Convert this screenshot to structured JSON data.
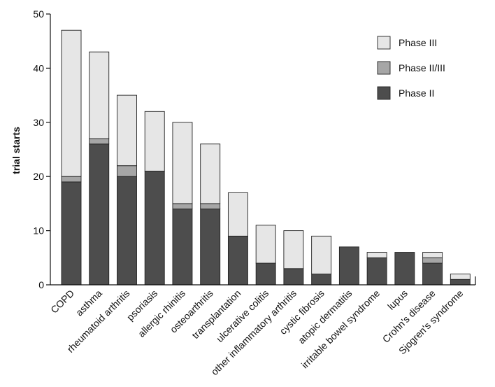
{
  "chart_data": {
    "type": "bar",
    "stacked": true,
    "title": "",
    "xlabel": "",
    "ylabel": "trial starts",
    "ylim": [
      0,
      50
    ],
    "yticks": [
      0,
      10,
      20,
      30,
      40,
      50
    ],
    "grid": false,
    "legend_position": "top-right",
    "categories": [
      "COPD",
      "asthma",
      "rheumatoid arthritis",
      "psoriasis",
      "allergic rhinitis",
      "osteoarthritis",
      "transplantation",
      "ulcerative colitis",
      "other inflammatory arthritis",
      "cystic fibrosis",
      "atopic dermatitis",
      "irritable bowel syndrome",
      "lupus",
      "Crohn's disease",
      "Sjogren's syndrome"
    ],
    "series": [
      {
        "name": "Phase II",
        "color": "#4d4d4d",
        "values": [
          19,
          26,
          20,
          21,
          14,
          14,
          9,
          4,
          3,
          2,
          7,
          5,
          6,
          4,
          1
        ]
      },
      {
        "name": "Phase II/III",
        "color": "#a6a6a6",
        "values": [
          1,
          1,
          2,
          0,
          1,
          1,
          0,
          0,
          0,
          0,
          0,
          0,
          0,
          1,
          0
        ]
      },
      {
        "name": "Phase III",
        "color": "#e6e6e6",
        "values": [
          27,
          16,
          13,
          11,
          15,
          11,
          8,
          7,
          7,
          7,
          0,
          1,
          0,
          1,
          1
        ]
      }
    ],
    "legend_order": [
      "Phase III",
      "Phase II/III",
      "Phase II"
    ]
  }
}
